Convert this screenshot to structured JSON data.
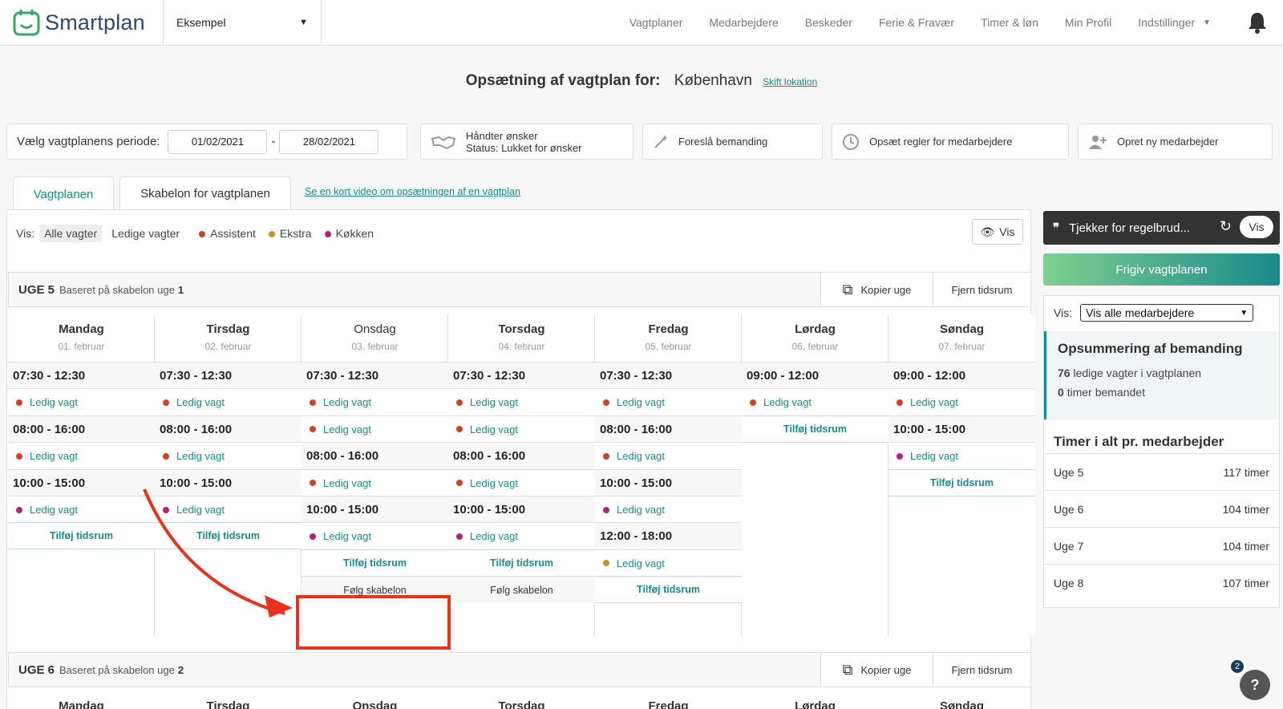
{
  "brand": {
    "name": "Smartplan"
  },
  "location_select": {
    "value": "Eksempel"
  },
  "nav": {
    "items": [
      "Vagtplaner",
      "Medarbejdere",
      "Beskeder",
      "Ferie & Fravær",
      "Timer & løn",
      "Min Profil",
      "Indstillinger"
    ]
  },
  "header": {
    "title": "Opsætning af vagtplan for:",
    "city": "København",
    "change_link": "Skift lokation"
  },
  "period": {
    "label": "Vælg vagtplanens periode:",
    "from": "01/02/2021",
    "sep": "-",
    "to": "28/02/2021"
  },
  "actions": {
    "wishes_title": "Håndter ønsker",
    "wishes_status": "Status: Lukket for ønsker",
    "suggest": "Foreslå bemanding",
    "rules": "Opsæt regler for medarbejdere",
    "new_employee": "Opret ny medarbejder"
  },
  "tabs": [
    "Vagtplanen",
    "Skabelon for vagtplanen"
  ],
  "video_link": "Se en kort video om opsætningen af en vagtplan",
  "filter": {
    "label": "Vis:",
    "all": "Alle vagter",
    "free": "Ledige vagter",
    "legend": [
      {
        "name": "Assistent",
        "color": "#d0412a"
      },
      {
        "name": "Ekstra",
        "color": "#c8902a"
      },
      {
        "name": "Køkken",
        "color": "#b0237d"
      }
    ],
    "vis_button": "Vis"
  },
  "week5": {
    "name": "UGE 5",
    "based": "Baseret på skabelon uge",
    "based_num": "1",
    "copy": "Kopier uge",
    "remove": "Fjern tidsrum"
  },
  "week6": {
    "name": "UGE 6",
    "based": "Baseret på skabelon uge",
    "based_num": "2",
    "copy": "Kopier uge",
    "remove": "Fjern tidsrum"
  },
  "days": [
    {
      "name": "Mandag",
      "date": "01. februar"
    },
    {
      "name": "Tirsdag",
      "date": "02. februar"
    },
    {
      "name": "Onsdag",
      "date": "03. februar"
    },
    {
      "name": "Torsdag",
      "date": "04. februar"
    },
    {
      "name": "Fredag",
      "date": "05. februar"
    },
    {
      "name": "Lørdag",
      "date": "06. februar"
    },
    {
      "name": "Søndag",
      "date": "07. februar"
    }
  ],
  "labels": {
    "free_shift": "Ledig vagt",
    "add_slot": "Tilføj tidsrum",
    "follow_template": "Følg skabelon"
  },
  "columns": [
    [
      [
        "slot",
        "07:30 - 12:30"
      ],
      [
        "shift",
        "a"
      ],
      [
        "slot",
        "08:00 - 16:00"
      ],
      [
        "shift",
        "a"
      ],
      [
        "slot",
        "10:00 - 15:00"
      ],
      [
        "shift",
        "k"
      ],
      [
        "add"
      ]
    ],
    [
      [
        "slot",
        "07:30 - 12:30"
      ],
      [
        "shift",
        "a"
      ],
      [
        "slot",
        "08:00 - 16:00"
      ],
      [
        "shift",
        "a"
      ],
      [
        "slot",
        "10:00 - 15:00"
      ],
      [
        "shift",
        "k"
      ],
      [
        "add"
      ]
    ],
    [
      [
        "slot",
        "07:30 - 12:30"
      ],
      [
        "shift",
        "a"
      ],
      [
        "shift",
        "a"
      ],
      [
        "slot",
        "08:00 - 16:00"
      ],
      [
        "shift",
        "a"
      ],
      [
        "slot",
        "10:00 - 15:00"
      ],
      [
        "shift",
        "k"
      ],
      [
        "add"
      ],
      [
        "follow"
      ]
    ],
    [
      [
        "slot",
        "07:30 - 12:30"
      ],
      [
        "shift",
        "a"
      ],
      [
        "shift",
        "a"
      ],
      [
        "slot",
        "08:00 - 16:00"
      ],
      [
        "shift",
        "a"
      ],
      [
        "slot",
        "10:00 - 15:00"
      ],
      [
        "shift",
        "k"
      ],
      [
        "add"
      ],
      [
        "follow"
      ]
    ],
    [
      [
        "slot",
        "07:30 - 12:30"
      ],
      [
        "shift",
        "a"
      ],
      [
        "slot",
        "08:00 - 16:00"
      ],
      [
        "shift",
        "a"
      ],
      [
        "slot",
        "10:00 - 15:00"
      ],
      [
        "shift",
        "k"
      ],
      [
        "slot",
        "12:00 - 18:00"
      ],
      [
        "shift",
        "e"
      ],
      [
        "add"
      ]
    ],
    [
      [
        "slot",
        "09:00 - 12:00"
      ],
      [
        "shift",
        "a"
      ],
      [
        "add"
      ]
    ],
    [
      [
        "slot",
        "09:00 - 12:00"
      ],
      [
        "shift",
        "a"
      ],
      [
        "slot",
        "10:00 - 15:00"
      ],
      [
        "shift",
        "k"
      ],
      [
        "add"
      ]
    ]
  ],
  "sidebar": {
    "checker": "Tjekker for regelbrud...",
    "checker_btn": "Vis",
    "publish": "Frigiv vagtplanen",
    "show_label": "Vis:",
    "show_select": "Vis alle medarbejdere",
    "summary_title": "Opsummering af bemanding",
    "free_count": "76",
    "free_text": "ledige vagter i vagtplanen",
    "hours_count": "0",
    "hours_text": "timer bemandet",
    "hours_title": "Timer i alt pr. medarbejder",
    "weeks": [
      {
        "w": "Uge 5",
        "h": "117 timer"
      },
      {
        "w": "Uge 6",
        "h": "104 timer"
      },
      {
        "w": "Uge 7",
        "h": "104 timer"
      },
      {
        "w": "Uge 8",
        "h": "107 timer"
      }
    ]
  },
  "help_badge": "2",
  "help_icon": "?"
}
